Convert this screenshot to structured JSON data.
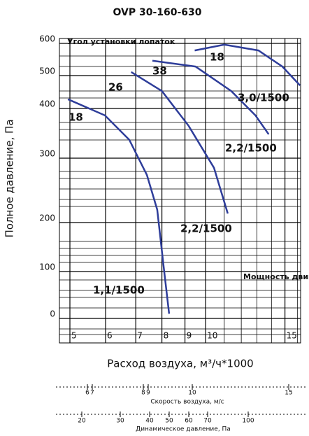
{
  "chart_data": {
    "type": "line",
    "title": "OVP 30-160-630",
    "xlabel": "Расход воздуха, м³/ч*1000",
    "ylabel": "Полное давление, Па",
    "annotation": "Угол установки лопаток",
    "power_note": "Мощность двигателя, кВт",
    "xscale": "log",
    "xlim": [
      5,
      17
    ],
    "xticks": [
      5,
      6,
      7,
      8,
      9,
      10,
      15
    ],
    "ylim": [
      0,
      600
    ],
    "yticks": [
      0,
      100,
      200,
      300,
      400,
      500,
      600
    ],
    "grid": true,
    "series": [
      {
        "name": "1,1/1500",
        "angle": "18",
        "color": "#2e3d9a",
        "x": [
          4.95,
          5.98,
          6.77,
          7.41,
          7.81,
          8.07,
          8.3
        ],
        "values": [
          428,
          386,
          337,
          274,
          220,
          111,
          10
        ]
      },
      {
        "name": "2,2/1500",
        "angle": "26",
        "color": "#2e3d9a",
        "x": [
          6.84,
          8.0,
          9.17,
          10.44,
          11.2
        ],
        "values": [
          511,
          453,
          365,
          285,
          214
        ]
      },
      {
        "name": "2,2/1500",
        "angle": "38",
        "color": "#2e3d9a",
        "x": [
          7.62,
          9.5,
          11.4,
          12.9,
          13.8
        ],
        "values": [
          546,
          528,
          453,
          386,
          348
        ]
      },
      {
        "name": "3,0/1500",
        "angle": "18",
        "color": "#2e3d9a",
        "x": [
          9.46,
          11.0,
          13.1,
          14.8,
          16.2
        ],
        "values": [
          578,
          596,
          578,
          528,
          470
        ]
      }
    ],
    "velocity_axis": {
      "label": "Скорость воздуха, м/с",
      "ticks": [
        6,
        7,
        8,
        9,
        10,
        15
      ]
    },
    "dynamic_pressure_axis": {
      "label": "Динамическое давление, Па",
      "ticks": [
        20,
        30,
        40,
        50,
        60,
        70,
        100
      ]
    }
  }
}
